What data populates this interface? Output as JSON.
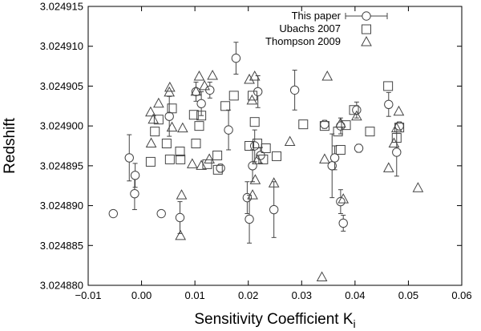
{
  "chart_data": {
    "type": "scatter",
    "xlabel": "Sensitivity Coefficient K",
    "xlabel_subscript": "i",
    "ylabel": "Redshift",
    "xlim": [
      -0.01,
      0.06
    ],
    "ylim": [
      3.02488,
      3.024915
    ],
    "xticks": [
      -0.01,
      0.0,
      0.01,
      0.02,
      0.03,
      0.04,
      0.05,
      0.06
    ],
    "xtick_labels": [
      "−0.01",
      "0.00",
      "0.01",
      "0.02",
      "0.03",
      "0.04",
      "0.05",
      "0.06"
    ],
    "yticks": [
      3.02488,
      3.024885,
      3.02489,
      3.024895,
      3.0249,
      3.024905,
      3.02491,
      3.024915
    ],
    "ytick_labels": [
      "3.024880",
      "3.024885",
      "3.024890",
      "3.024895",
      "3.024900",
      "3.024905",
      "3.024910",
      "3.024915"
    ],
    "grid": false,
    "legend_position": "top-right",
    "legend": [
      {
        "label": "This paper",
        "marker": "circle",
        "errorbar": true
      },
      {
        "label": "Ubachs 2007",
        "marker": "square"
      },
      {
        "label": "Thompson 2009",
        "marker": "triangle"
      }
    ],
    "series": [
      {
        "name": "This paper",
        "marker": "circle",
        "points": [
          {
            "x": -0.0053,
            "y": 3.024889,
            "err": 2e-07
          },
          {
            "x": -0.0023,
            "y": 3.024896,
            "err": 2.9e-06
          },
          {
            "x": -0.0013,
            "y": 3.0248915,
            "err": 2e-06
          },
          {
            "x": -0.0012,
            "y": 3.0248938,
            "err": 1.5e-06
          },
          {
            "x": 0.0037,
            "y": 3.024889,
            "err": 2e-07
          },
          {
            "x": 0.0052,
            "y": 3.0249012,
            "err": 2.5e-06
          },
          {
            "x": 0.0072,
            "y": 3.0248885,
            "err": 2e-06
          },
          {
            "x": 0.0102,
            "y": 3.0249043,
            "err": 1.2e-06
          },
          {
            "x": 0.0112,
            "y": 3.0249028,
            "err": 1.5e-06
          },
          {
            "x": 0.0128,
            "y": 3.0249045,
            "err": 1e-06
          },
          {
            "x": 0.0148,
            "y": 3.0248947,
            "err": 5e-07
          },
          {
            "x": 0.0163,
            "y": 3.0248995,
            "err": 2.5e-06
          },
          {
            "x": 0.0177,
            "y": 3.0249085,
            "err": 2e-06
          },
          {
            "x": 0.0198,
            "y": 3.024891,
            "err": 2e-06
          },
          {
            "x": 0.0202,
            "y": 3.0248883,
            "err": 3e-06
          },
          {
            "x": 0.0208,
            "y": 3.024895,
            "err": 2e-06
          },
          {
            "x": 0.0212,
            "y": 3.0248975,
            "err": 2e-06
          },
          {
            "x": 0.0218,
            "y": 3.0249043,
            "err": 2e-06
          },
          {
            "x": 0.0223,
            "y": 3.0248963,
            "err": 1e-06
          },
          {
            "x": 0.0248,
            "y": 3.0248895,
            "err": 3.5e-06
          },
          {
            "x": 0.0287,
            "y": 3.0249045,
            "err": 2.5e-06
          },
          {
            "x": 0.0343,
            "y": 3.0249002,
            "err": 5e-07
          },
          {
            "x": 0.0357,
            "y": 3.024895,
            "err": 4e-06
          },
          {
            "x": 0.0362,
            "y": 3.024896,
            "err": 1.5e-06
          },
          {
            "x": 0.0373,
            "y": 3.0249,
            "err": 1e-06
          },
          {
            "x": 0.0373,
            "y": 3.0248905,
            "err": 1.5e-06
          },
          {
            "x": 0.0378,
            "y": 3.0248878,
            "err": 1e-06
          },
          {
            "x": 0.0403,
            "y": 3.024902,
            "err": 1e-06
          },
          {
            "x": 0.0407,
            "y": 3.0248972,
            "err": 5e-07
          },
          {
            "x": 0.0463,
            "y": 3.0249027,
            "err": 1.5e-06
          },
          {
            "x": 0.0478,
            "y": 3.0248967,
            "err": 3e-06
          },
          {
            "x": 0.0483,
            "y": 3.0249,
            "err": 5e-07
          }
        ]
      },
      {
        "name": "Ubachs 2007",
        "marker": "square",
        "points": [
          {
            "x": 0.0017,
            "y": 3.0248955
          },
          {
            "x": 0.0025,
            "y": 3.0248993
          },
          {
            "x": 0.0032,
            "y": 3.0249008
          },
          {
            "x": 0.0047,
            "y": 3.0248978
          },
          {
            "x": 0.0053,
            "y": 3.0248958
          },
          {
            "x": 0.0057,
            "y": 3.0249022
          },
          {
            "x": 0.0072,
            "y": 3.0248968
          },
          {
            "x": 0.0073,
            "y": 3.0248958
          },
          {
            "x": 0.0098,
            "y": 3.0249014
          },
          {
            "x": 0.0102,
            "y": 3.0248978
          },
          {
            "x": 0.0108,
            "y": 3.0249
          },
          {
            "x": 0.0112,
            "y": 3.0249013
          },
          {
            "x": 0.0123,
            "y": 3.0248952
          },
          {
            "x": 0.0142,
            "y": 3.0248963
          },
          {
            "x": 0.0143,
            "y": 3.0248945
          },
          {
            "x": 0.0157,
            "y": 3.0249025
          },
          {
            "x": 0.0173,
            "y": 3.0249038
          },
          {
            "x": 0.0202,
            "y": 3.0248975
          },
          {
            "x": 0.0208,
            "y": 3.0249038
          },
          {
            "x": 0.0212,
            "y": 3.0249005
          },
          {
            "x": 0.0217,
            "y": 3.0248978
          },
          {
            "x": 0.0228,
            "y": 3.0248958
          },
          {
            "x": 0.0233,
            "y": 3.0248972
          },
          {
            "x": 0.0253,
            "y": 3.0248962
          },
          {
            "x": 0.0303,
            "y": 3.0249002
          },
          {
            "x": 0.0343,
            "y": 3.0249
          },
          {
            "x": 0.0368,
            "y": 3.0248993
          },
          {
            "x": 0.0373,
            "y": 3.024897
          },
          {
            "x": 0.0383,
            "y": 3.0249001
          },
          {
            "x": 0.0398,
            "y": 3.024902
          },
          {
            "x": 0.0428,
            "y": 3.0248993
          },
          {
            "x": 0.0462,
            "y": 3.024905
          },
          {
            "x": 0.0478,
            "y": 3.0248985
          },
          {
            "x": 0.0483,
            "y": 3.0248998
          }
        ]
      },
      {
        "name": "Thompson 2009",
        "marker": "triangle",
        "points": [
          {
            "x": 0.0017,
            "y": 3.0249017
          },
          {
            "x": 0.0022,
            "y": 3.0249008
          },
          {
            "x": 0.0018,
            "y": 3.0248978
          },
          {
            "x": 0.0032,
            "y": 3.0249028
          },
          {
            "x": 0.0052,
            "y": 3.0249042
          },
          {
            "x": 0.0053,
            "y": 3.0249048
          },
          {
            "x": 0.0057,
            "y": 3.0248998
          },
          {
            "x": 0.0073,
            "y": 3.0248862
          },
          {
            "x": 0.0075,
            "y": 3.0248913
          },
          {
            "x": 0.0077,
            "y": 3.0248997
          },
          {
            "x": 0.0095,
            "y": 3.0248952
          },
          {
            "x": 0.0102,
            "y": 3.0249043
          },
          {
            "x": 0.0108,
            "y": 3.0249062
          },
          {
            "x": 0.0112,
            "y": 3.024895
          },
          {
            "x": 0.0118,
            "y": 3.024905
          },
          {
            "x": 0.0127,
            "y": 3.0248958
          },
          {
            "x": 0.0133,
            "y": 3.0249063
          },
          {
            "x": 0.0202,
            "y": 3.0249058
          },
          {
            "x": 0.0207,
            "y": 3.0249032
          },
          {
            "x": 0.0208,
            "y": 3.0248913
          },
          {
            "x": 0.0212,
            "y": 3.0249062
          },
          {
            "x": 0.0213,
            "y": 3.0248932
          },
          {
            "x": 0.0217,
            "y": 3.0248957
          },
          {
            "x": 0.0248,
            "y": 3.0248928
          },
          {
            "x": 0.0278,
            "y": 3.024898
          },
          {
            "x": 0.0338,
            "y": 3.024881
          },
          {
            "x": 0.0348,
            "y": 3.0249062
          },
          {
            "x": 0.0343,
            "y": 3.0248958
          },
          {
            "x": 0.0373,
            "y": 3.0249003
          },
          {
            "x": 0.0378,
            "y": 3.0248908
          },
          {
            "x": 0.0403,
            "y": 3.0249012
          },
          {
            "x": 0.0463,
            "y": 3.0248947
          },
          {
            "x": 0.0473,
            "y": 3.0248978
          },
          {
            "x": 0.0478,
            "y": 3.0248997
          },
          {
            "x": 0.0482,
            "y": 3.0249018
          },
          {
            "x": 0.0518,
            "y": 3.0248922
          }
        ]
      }
    ]
  }
}
